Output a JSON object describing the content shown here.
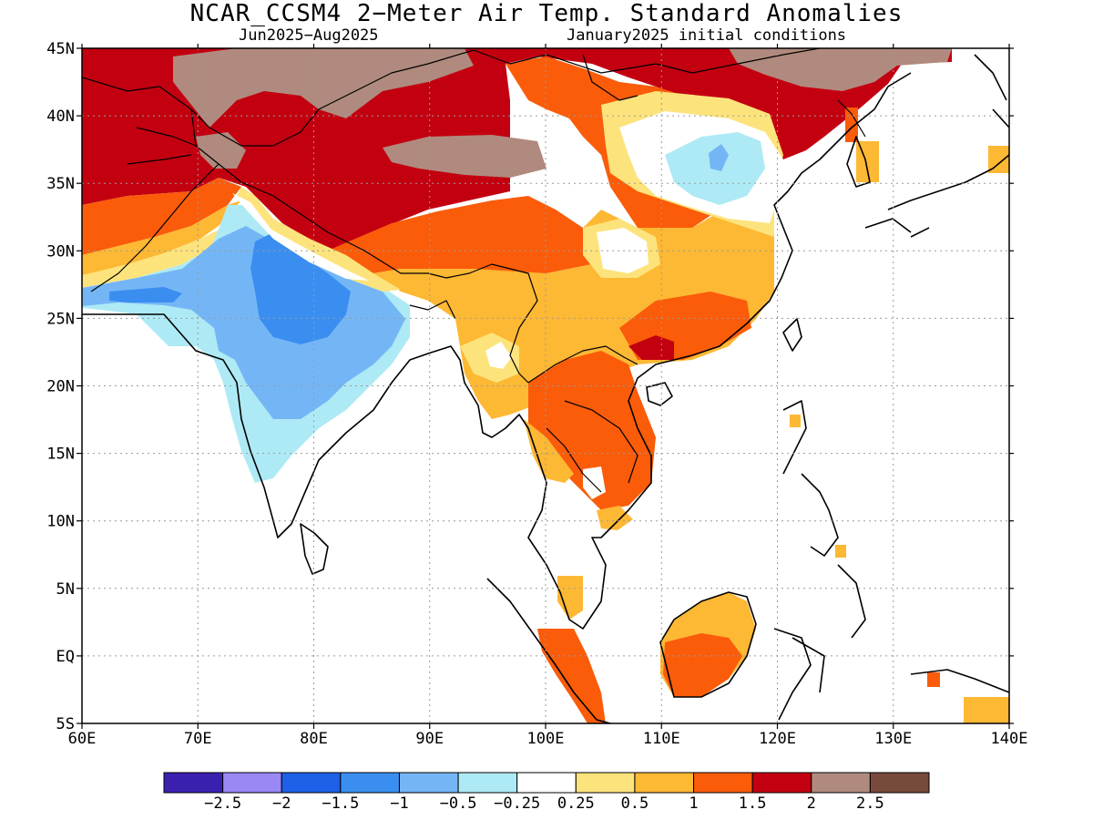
{
  "title": "NCAR_CCSM4 2−Meter Air Temp. Standard Anomalies",
  "subtitle_left": "Jun2025−Aug2025",
  "subtitle_right": "January2025 initial conditions",
  "map": {
    "lon_range": [
      60,
      140
    ],
    "lat_range": [
      -5,
      45
    ],
    "gridlines": true,
    "lon_ticks": [
      "60E",
      "70E",
      "80E",
      "90E",
      "100E",
      "110E",
      "120E",
      "130E",
      "140E"
    ],
    "lat_ticks": [
      "45N",
      "40N",
      "35N",
      "30N",
      "25N",
      "20N",
      "15N",
      "10N",
      "5N",
      "EQ",
      "5S"
    ]
  },
  "legend": {
    "colors": [
      "#3b20b0",
      "#9a88f4",
      "#1f60e8",
      "#3a8ef0",
      "#74b6f5",
      "#aeeaf5",
      "#ffffff",
      "#fde37c",
      "#fdb834",
      "#fa5c0a",
      "#c30010",
      "#b08a7e",
      "#784a3c"
    ],
    "labels": [
      "−2.5",
      "−2",
      "−1.5",
      "−1",
      "−0.5",
      "−0.25",
      "0.25",
      "0.5",
      "1",
      "1.5",
      "2",
      "2.5"
    ]
  }
}
